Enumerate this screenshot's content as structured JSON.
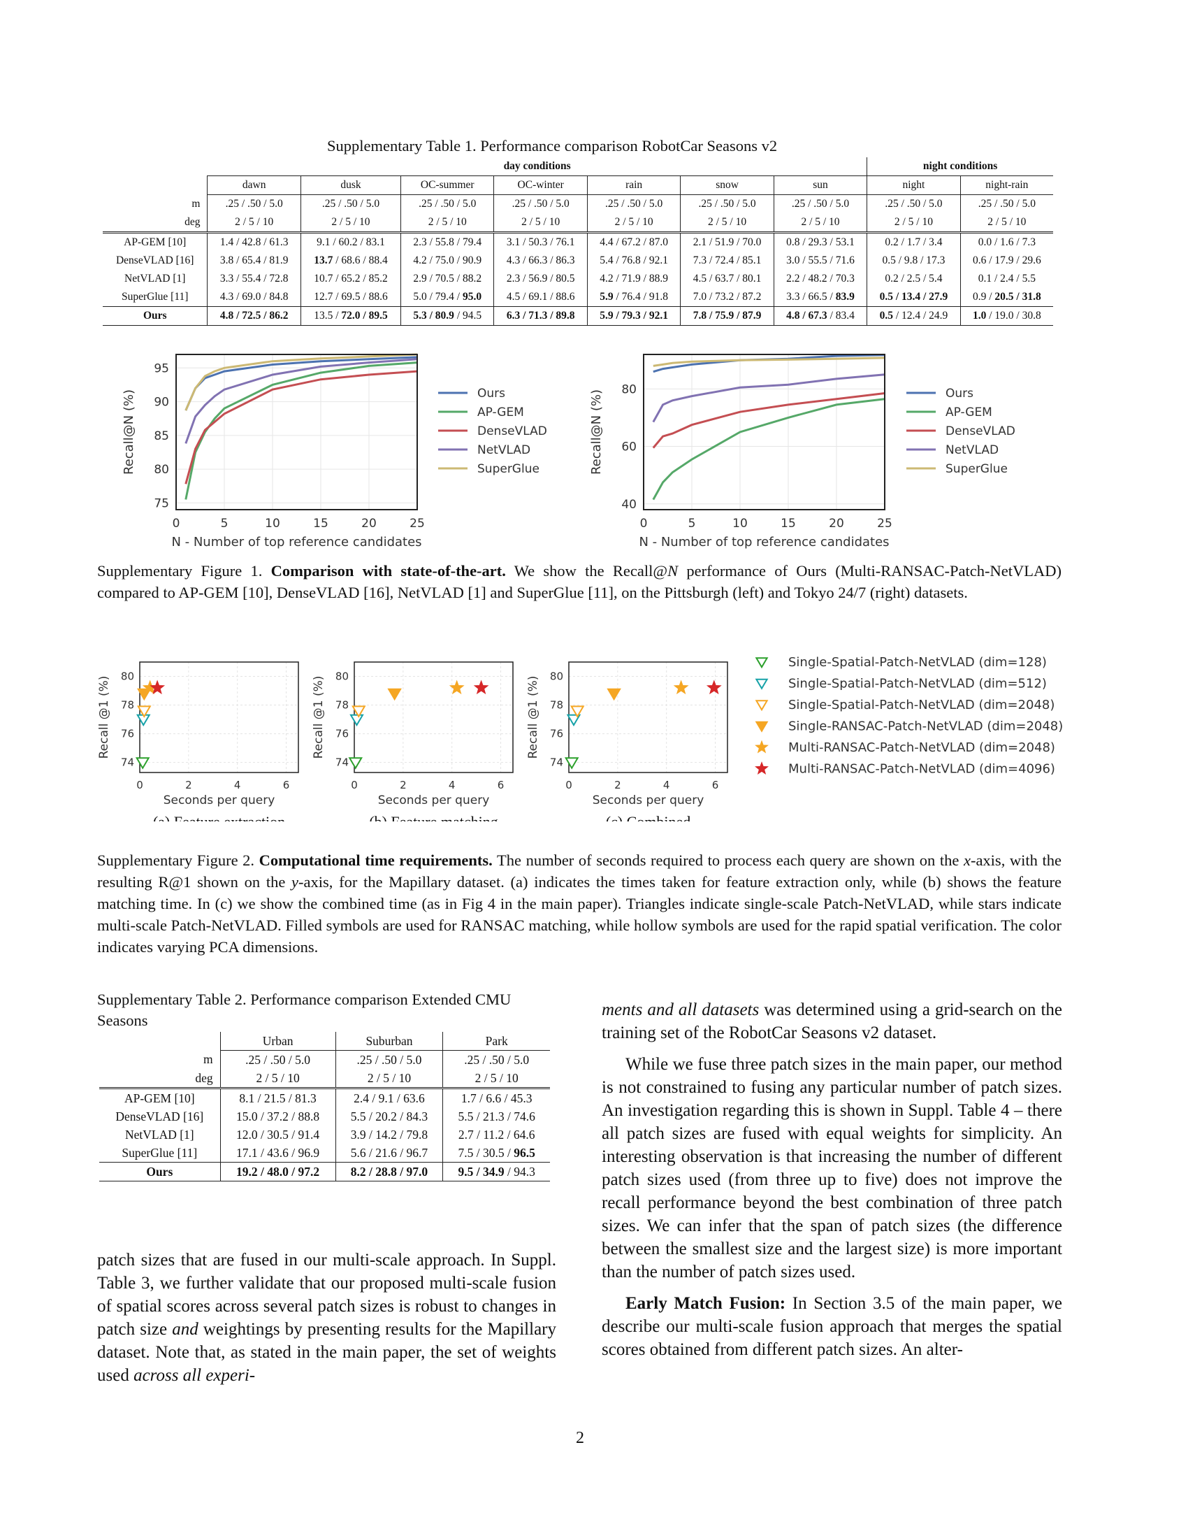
{
  "table1": {
    "caption": "Supplementary Table 1. Performance comparison RobotCar Seasons v2",
    "group_day": "day conditions",
    "group_night": "night conditions",
    "columns": [
      "dawn",
      "dusk",
      "OC-summer",
      "OC-winter",
      "rain",
      "snow",
      "sun",
      "night",
      "night-rain"
    ],
    "m_label": "m",
    "deg_label": "deg",
    "m_value": ".25 / .50 / 5.0",
    "deg_value": "2 / 5 / 10",
    "rows": [
      {
        "method": "AP-GEM [10]",
        "cells": [
          [
            "1.4 / 42.8 / 61.3"
          ],
          [
            "9.1 / 60.2 / 83.1"
          ],
          [
            "2.3 / 55.8 / 79.4"
          ],
          [
            "3.1 / 50.3 / 76.1"
          ],
          [
            "4.4 / 67.2 / 87.0"
          ],
          [
            "2.1 / 51.9 / 70.0"
          ],
          [
            "0.8 / 29.3 / 53.1"
          ],
          [
            "0.2 / 1.7 / 3.4"
          ],
          [
            "0.0 /  1.6  / 7.3"
          ]
        ]
      },
      {
        "method": "DenseVLAD [16]",
        "cells": [
          [
            "3.8 / 65.4 / 81.9"
          ],
          [
            "",
            "13.7",
            " / 68.6 / 88.4"
          ],
          [
            "4.2 / 75.0 / 90.9"
          ],
          [
            "4.3 / 66.3 / 86.3"
          ],
          [
            "5.4 / 76.8 / 92.1"
          ],
          [
            "7.3 / 72.4 / 85.1"
          ],
          [
            "3.0 / 55.5 / 71.6"
          ],
          [
            "0.5 / 9.8 / 17.3"
          ],
          [
            "0.6 / 17.9 / 29.6"
          ]
        ]
      },
      {
        "method": "NetVLAD [1]",
        "cells": [
          [
            "3.3 / 55.4 / 72.8"
          ],
          [
            "10.7 / 65.2 / 85.2"
          ],
          [
            "2.9 / 70.5 / 88.2"
          ],
          [
            "2.3 / 56.9 / 80.5"
          ],
          [
            "4.2 / 71.9 / 88.9"
          ],
          [
            "4.5 / 63.7 / 80.1"
          ],
          [
            "2.2 / 48.2 / 70.3"
          ],
          [
            "0.2 / 2.5 / 5.4"
          ],
          [
            "0.1  / 2.4  / 5.5"
          ]
        ]
      },
      {
        "method": "SuperGlue [11]",
        "cells": [
          [
            "4.3 / 69.0 / 84.8"
          ],
          [
            "12.7 / 69.5 / 88.6"
          ],
          [
            "5.0 / 79.4 / ",
            "95.0"
          ],
          [
            "4.5 / 69.1 / 88.6"
          ],
          [
            "",
            "5.9",
            " / 76.4 / 91.8"
          ],
          [
            "7.0 / 73.2 / 87.2"
          ],
          [
            "3.3 / 66.5 / ",
            "83.9"
          ],
          [
            "",
            "0.5 / 13.4 / 27.9"
          ],
          [
            "0.9 / ",
            "20.5 / 31.8"
          ]
        ]
      }
    ],
    "ours": {
      "method": "Ours",
      "cells": [
        [
          "",
          "4.8 / 72.5 / 86.2"
        ],
        [
          "13.5 / ",
          "72.0 / 89.5"
        ],
        [
          "",
          "5.3 / 80.9",
          " / 94.5"
        ],
        [
          "",
          "6.3 / 71.3 / 89.8"
        ],
        [
          "",
          "5.9 / 79.3 / 92.1"
        ],
        [
          "",
          "7.8 / 75.9 / 87.9"
        ],
        [
          "",
          "4.8 / 67.3",
          " / 83.4"
        ],
        [
          "",
          "0.5",
          " / 12.4 / 24.9"
        ],
        [
          "",
          "1.0",
          " / 19.0 / 30.8"
        ]
      ]
    }
  },
  "figure1": {
    "caption_prefix": "Supplementary Figure 1. ",
    "caption_bold": "Comparison with state-of-the-art.",
    "caption_rest_1": "  We show the Recall@",
    "caption_N": "N",
    "caption_rest_2": " performance of Ours (Multi-RANSAC-Patch-NetVLAD) compared to AP-GEM [10], DenseVLAD [16], NetVLAD [1] and SuperGlue [11], on the Pittsburgh (left) and Tokyo 24/7 (right) datasets.",
    "legend": [
      "Ours",
      "AP-GEM",
      "DenseVLAD",
      "NetVLAD",
      "SuperGlue"
    ]
  },
  "chart_data": [
    {
      "type": "line",
      "xlabel": "N - Number of top reference candidates",
      "ylabel": "Recall@N (%)",
      "xlim": [
        0,
        25
      ],
      "ylim": [
        74,
        97
      ],
      "xticks": [
        0,
        5,
        10,
        15,
        20,
        25
      ],
      "yticks": [
        75,
        80,
        85,
        90,
        95
      ],
      "grid": true,
      "legend_placement": "right",
      "x": [
        1,
        2,
        3,
        4,
        5,
        10,
        15,
        20,
        25
      ],
      "series": [
        {
          "name": "Ours",
          "color": "#4c72b0",
          "values": [
            88.7,
            92.0,
            93.5,
            94.0,
            94.5,
            95.5,
            96.0,
            96.3,
            96.6
          ]
        },
        {
          "name": "AP-GEM",
          "color": "#55a868",
          "values": [
            75.5,
            82.5,
            85.5,
            87.5,
            89.0,
            92.5,
            94.3,
            95.3,
            95.8
          ]
        },
        {
          "name": "DenseVLAD",
          "color": "#c44e52",
          "values": [
            77.8,
            83.0,
            85.8,
            87.0,
            88.2,
            91.8,
            93.3,
            94.0,
            94.5
          ]
        },
        {
          "name": "NetVLAD",
          "color": "#8172b2",
          "values": [
            83.8,
            87.8,
            89.5,
            90.8,
            91.8,
            94.0,
            95.2,
            95.8,
            96.3
          ]
        },
        {
          "name": "SuperGlue",
          "color": "#ccb974",
          "values": [
            88.7,
            92.0,
            93.8,
            94.5,
            95.0,
            96.0,
            96.4,
            96.7,
            97.0
          ]
        }
      ]
    },
    {
      "type": "line",
      "xlabel": "N - Number of top reference candidates",
      "ylabel": "Recall@N (%)",
      "xlim": [
        0,
        25
      ],
      "ylim": [
        38,
        92
      ],
      "xticks": [
        0,
        5,
        10,
        15,
        20,
        25
      ],
      "yticks": [
        40,
        60,
        80
      ],
      "grid": true,
      "legend_placement": "right",
      "x": [
        1,
        2,
        3,
        5,
        10,
        15,
        20,
        25
      ],
      "series": [
        {
          "name": "Ours",
          "color": "#4c72b0",
          "values": [
            86.0,
            87.0,
            87.5,
            88.5,
            90.0,
            90.5,
            91.5,
            91.8
          ]
        },
        {
          "name": "AP-GEM",
          "color": "#55a868",
          "values": [
            41.5,
            47.5,
            51.0,
            55.5,
            65.0,
            70.0,
            74.5,
            76.5
          ]
        },
        {
          "name": "DenseVLAD",
          "color": "#c44e52",
          "values": [
            59.5,
            63.5,
            64.5,
            67.5,
            72.0,
            74.5,
            76.5,
            78.5
          ]
        },
        {
          "name": "NetVLAD",
          "color": "#8172b2",
          "values": [
            68.5,
            74.5,
            76.0,
            77.5,
            80.5,
            81.5,
            83.5,
            85.0
          ]
        },
        {
          "name": "SuperGlue",
          "color": "#ccb974",
          "values": [
            88.0,
            88.5,
            89.0,
            89.5,
            90.0,
            90.2,
            90.5,
            90.8
          ]
        }
      ]
    },
    {
      "type": "scatter",
      "subcaption": "(a) Feature extraction",
      "xlabel": "Seconds per query",
      "ylabel": "Recall @1 (%)",
      "xlim": [
        0,
        6.5
      ],
      "ylim": [
        73.3,
        81.0
      ],
      "xticks": [
        0,
        2,
        4,
        6
      ],
      "yticks": [
        74,
        76,
        78,
        80
      ],
      "grid": true,
      "points": [
        {
          "label": "Single-Spatial-Patch-NetVLAD (dim=128)",
          "x": 0.12,
          "y": 74.0
        },
        {
          "label": "Single-Spatial-Patch-NetVLAD (dim=512)",
          "x": 0.15,
          "y": 77.0
        },
        {
          "label": "Single-Spatial-Patch-NetVLAD (dim=2048)",
          "x": 0.18,
          "y": 77.6
        },
        {
          "label": "Single-RANSAC-Patch-NetVLAD (dim=2048)",
          "x": 0.18,
          "y": 78.8
        },
        {
          "label": "Multi-RANSAC-Patch-NetVLAD (dim=2048)",
          "x": 0.42,
          "y": 79.2
        },
        {
          "label": "Multi-RANSAC-Patch-NetVLAD (dim=4096)",
          "x": 0.72,
          "y": 79.2
        }
      ]
    },
    {
      "type": "scatter",
      "subcaption": "(b) Feature matching",
      "xlabel": "Seconds per query",
      "ylabel": "Recall @1 (%)",
      "xlim": [
        0,
        6.5
      ],
      "ylim": [
        73.3,
        81.0
      ],
      "xticks": [
        0,
        2,
        4,
        6
      ],
      "yticks": [
        74,
        76,
        78,
        80
      ],
      "grid": true,
      "points": [
        {
          "label": "Single-Spatial-Patch-NetVLAD (dim=128)",
          "x": 0.05,
          "y": 74.0
        },
        {
          "label": "Single-Spatial-Patch-NetVLAD (dim=512)",
          "x": 0.1,
          "y": 77.0
        },
        {
          "label": "Single-Spatial-Patch-NetVLAD (dim=2048)",
          "x": 0.18,
          "y": 77.6
        },
        {
          "label": "Single-RANSAC-Patch-NetVLAD (dim=2048)",
          "x": 1.65,
          "y": 78.8
        },
        {
          "label": "Multi-RANSAC-Patch-NetVLAD (dim=2048)",
          "x": 4.2,
          "y": 79.2
        },
        {
          "label": "Multi-RANSAC-Patch-NetVLAD (dim=4096)",
          "x": 5.2,
          "y": 79.2
        }
      ]
    },
    {
      "type": "scatter",
      "subcaption": "(c) Combined",
      "xlabel": "Seconds per query",
      "ylabel": "Recall @1 (%)",
      "xlim": [
        0,
        6.5
      ],
      "ylim": [
        73.3,
        81.0
      ],
      "xticks": [
        0,
        2,
        4,
        6
      ],
      "yticks": [
        74,
        76,
        78,
        80
      ],
      "grid": true,
      "points": [
        {
          "label": "Single-Spatial-Patch-NetVLAD (dim=128)",
          "x": 0.12,
          "y": 74.0
        },
        {
          "label": "Single-Spatial-Patch-NetVLAD (dim=512)",
          "x": 0.2,
          "y": 77.0
        },
        {
          "label": "Single-Spatial-Patch-NetVLAD (dim=2048)",
          "x": 0.35,
          "y": 77.6
        },
        {
          "label": "Single-RANSAC-Patch-NetVLAD (dim=2048)",
          "x": 1.85,
          "y": 78.8
        },
        {
          "label": "Multi-RANSAC-Patch-NetVLAD (dim=2048)",
          "x": 4.6,
          "y": 79.2
        },
        {
          "label": "Multi-RANSAC-Patch-NetVLAD (dim=4096)",
          "x": 5.95,
          "y": 79.2
        }
      ]
    }
  ],
  "figure2": {
    "legend": [
      {
        "label": "Single-Spatial-Patch-NetVLAD (dim=128)",
        "shape": "tri-hollow",
        "color": "#2ca02c"
      },
      {
        "label": "Single-Spatial-Patch-NetVLAD (dim=512)",
        "shape": "tri-hollow",
        "color": "#17a2a8"
      },
      {
        "label": "Single-Spatial-Patch-NetVLAD (dim=2048)",
        "shape": "tri-hollow",
        "color": "#f5a623"
      },
      {
        "label": "Single-RANSAC-Patch-NetVLAD (dim=2048)",
        "shape": "tri-filled",
        "color": "#f5a623"
      },
      {
        "label": "Multi-RANSAC-Patch-NetVLAD (dim=2048)",
        "shape": "star",
        "color": "#f5a623"
      },
      {
        "label": "Multi-RANSAC-Patch-NetVLAD (dim=4096)",
        "shape": "star",
        "color": "#d62728"
      }
    ],
    "caption_prefix": "Supplementary Figure 2. ",
    "caption_bold": "Computational time requirements.",
    "caption_rest_1": " The number of seconds required to process each query are shown on the ",
    "caption_x": "x",
    "caption_rest_2": "-axis, with the resulting R@1 shown on the ",
    "caption_y": "y",
    "caption_rest_3": "-axis, for the Mapillary dataset.  (a) indicates the times taken for feature extraction only, while (b) shows the feature matching time. In (c) we show the combined time (as in Fig 4 in the main paper). Triangles indicate single-scale Patch-NetVLAD, while stars indicate multi-scale Patch-NetVLAD. Filled symbols are used for RANSAC matching, while hollow symbols are used for the rapid spatial verification. The color indicates varying PCA dimensions."
  },
  "table2": {
    "caption": "Supplementary Table 2. Performance comparison Extended CMU Seasons",
    "columns": [
      "Urban",
      "Suburban",
      "Park"
    ],
    "m_label": "m",
    "deg_label": "deg",
    "m_value": ".25 / .50 / 5.0",
    "deg_value": "2 / 5 / 10",
    "rows": [
      {
        "method": "AP-GEM [10]",
        "cells": [
          [
            "8.1 / 21.5 / 81.3"
          ],
          [
            "2.4 /  9.1  / 63.6"
          ],
          [
            "1.7 / 6.6 / 45.3"
          ]
        ]
      },
      {
        "method": "DenseVLAD [16]",
        "cells": [
          [
            "15.0 / 37.2 / 88.8"
          ],
          [
            "5.5 / 20.2 / 84.3"
          ],
          [
            "5.5 / 21.3 / 74.6"
          ]
        ]
      },
      {
        "method": "NetVLAD [1]",
        "cells": [
          [
            "12.0 / 30.5 / 91.4"
          ],
          [
            "3.9 / 14.2 / 79.8"
          ],
          [
            "2.7 / 11.2 / 64.6"
          ]
        ]
      },
      {
        "method": "SuperGlue [11]",
        "cells": [
          [
            "17.1 / 43.6 / 96.9"
          ],
          [
            "5.6 / 21.6 / 96.7"
          ],
          [
            "7.5 / 30.5 / ",
            "96.5"
          ]
        ]
      }
    ],
    "ours": {
      "method": "Ours",
      "cells": [
        [
          "",
          "19.2 / 48.0 / 97.2"
        ],
        [
          "",
          "8.2 / 28.8 / 97.0"
        ],
        [
          "",
          "9.5 / 34.9",
          " / 94.3"
        ]
      ]
    }
  },
  "left_text": {
    "p1_a": "patch sizes that are fused in our multi-scale approach.  In Suppl. Table 3, we further validate that our proposed multi-scale fusion of spatial scores across several patch sizes is robust to changes in patch size ",
    "p1_and": "and",
    "p1_b": " weightings by presenting results for the Mapillary dataset. Note that, as stated in the main paper, the set of weights used ",
    "p1_italic": "across all experi-"
  },
  "right_text": {
    "p0_italic": "ments and all datasets",
    "p0_rest": " was determined using a grid-search on the training set of the RobotCar Seasons v2 dataset.",
    "p1": "While we fuse three patch sizes in the main paper, our method is not constrained to fusing any particular number of patch sizes.  An investigation regarding this is shown in Suppl. Table 4 – there all patch sizes are fused with equal weights for simplicity.  An interesting observation is that increasing the number of different patch sizes used (from three up to five) does not improve the recall performance beyond the best combination of three patch sizes.  We can infer that the span of patch sizes (the difference between the smallest size and the largest size) is more important than the number of patch sizes used.",
    "p2_bold": "Early Match Fusion:",
    "p2_rest": " In Section 3.5 of the main paper, we describe our multi-scale fusion approach that merges the spatial scores obtained from different patch sizes. An alter-"
  },
  "page_number": "2"
}
